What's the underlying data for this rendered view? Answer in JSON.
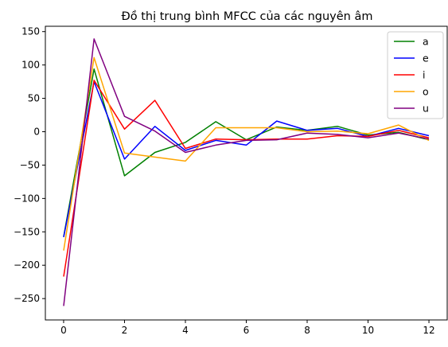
{
  "chart_data": {
    "type": "line",
    "title": "Đồ thị trung bình MFCC của các nguyên âm",
    "xlabel": "",
    "ylabel": "",
    "x": [
      0,
      1,
      2,
      3,
      4,
      5,
      6,
      7,
      8,
      9,
      10,
      11,
      12
    ],
    "xlim": [
      -0.6,
      12.6
    ],
    "ylim": [
      -282,
      158
    ],
    "xticks": [
      0,
      2,
      4,
      6,
      8,
      10,
      12
    ],
    "xtick_labels": [
      "0",
      "2",
      "4",
      "6",
      "8",
      "10",
      "12"
    ],
    "yticks": [
      150,
      100,
      50,
      0,
      -50,
      -100,
      -150,
      -200,
      -250
    ],
    "ytick_labels": [
      "150",
      "100",
      "50",
      "0",
      "−50",
      "−100",
      "−150",
      "−200",
      "−250"
    ],
    "grid": false,
    "legend_position": "top-right",
    "series": [
      {
        "name": "a",
        "color": "#008000",
        "values": [
          -157,
          94,
          -66,
          -31,
          -16,
          15,
          -12,
          7,
          2,
          8,
          -5,
          -1,
          -12
        ]
      },
      {
        "name": "e",
        "color": "#0000ff",
        "values": [
          -158,
          75,
          -41,
          8,
          -28,
          -13,
          -20,
          16,
          2,
          5,
          -7,
          5,
          -6
        ]
      },
      {
        "name": "i",
        "color": "#ff0000",
        "values": [
          -217,
          77,
          4,
          47,
          -25,
          -11,
          -12,
          -11,
          -11,
          -6,
          -7,
          2,
          -9
        ]
      },
      {
        "name": "o",
        "color": "#ffa500",
        "values": [
          -178,
          111,
          -32,
          -38,
          -44,
          6,
          6,
          6,
          0,
          1,
          -3,
          10,
          -13
        ]
      },
      {
        "name": "u",
        "color": "#800080",
        "values": [
          -261,
          139,
          23,
          1,
          -31,
          -20,
          -13,
          -12,
          -2,
          -4,
          -9,
          -2,
          -11
        ]
      }
    ]
  }
}
